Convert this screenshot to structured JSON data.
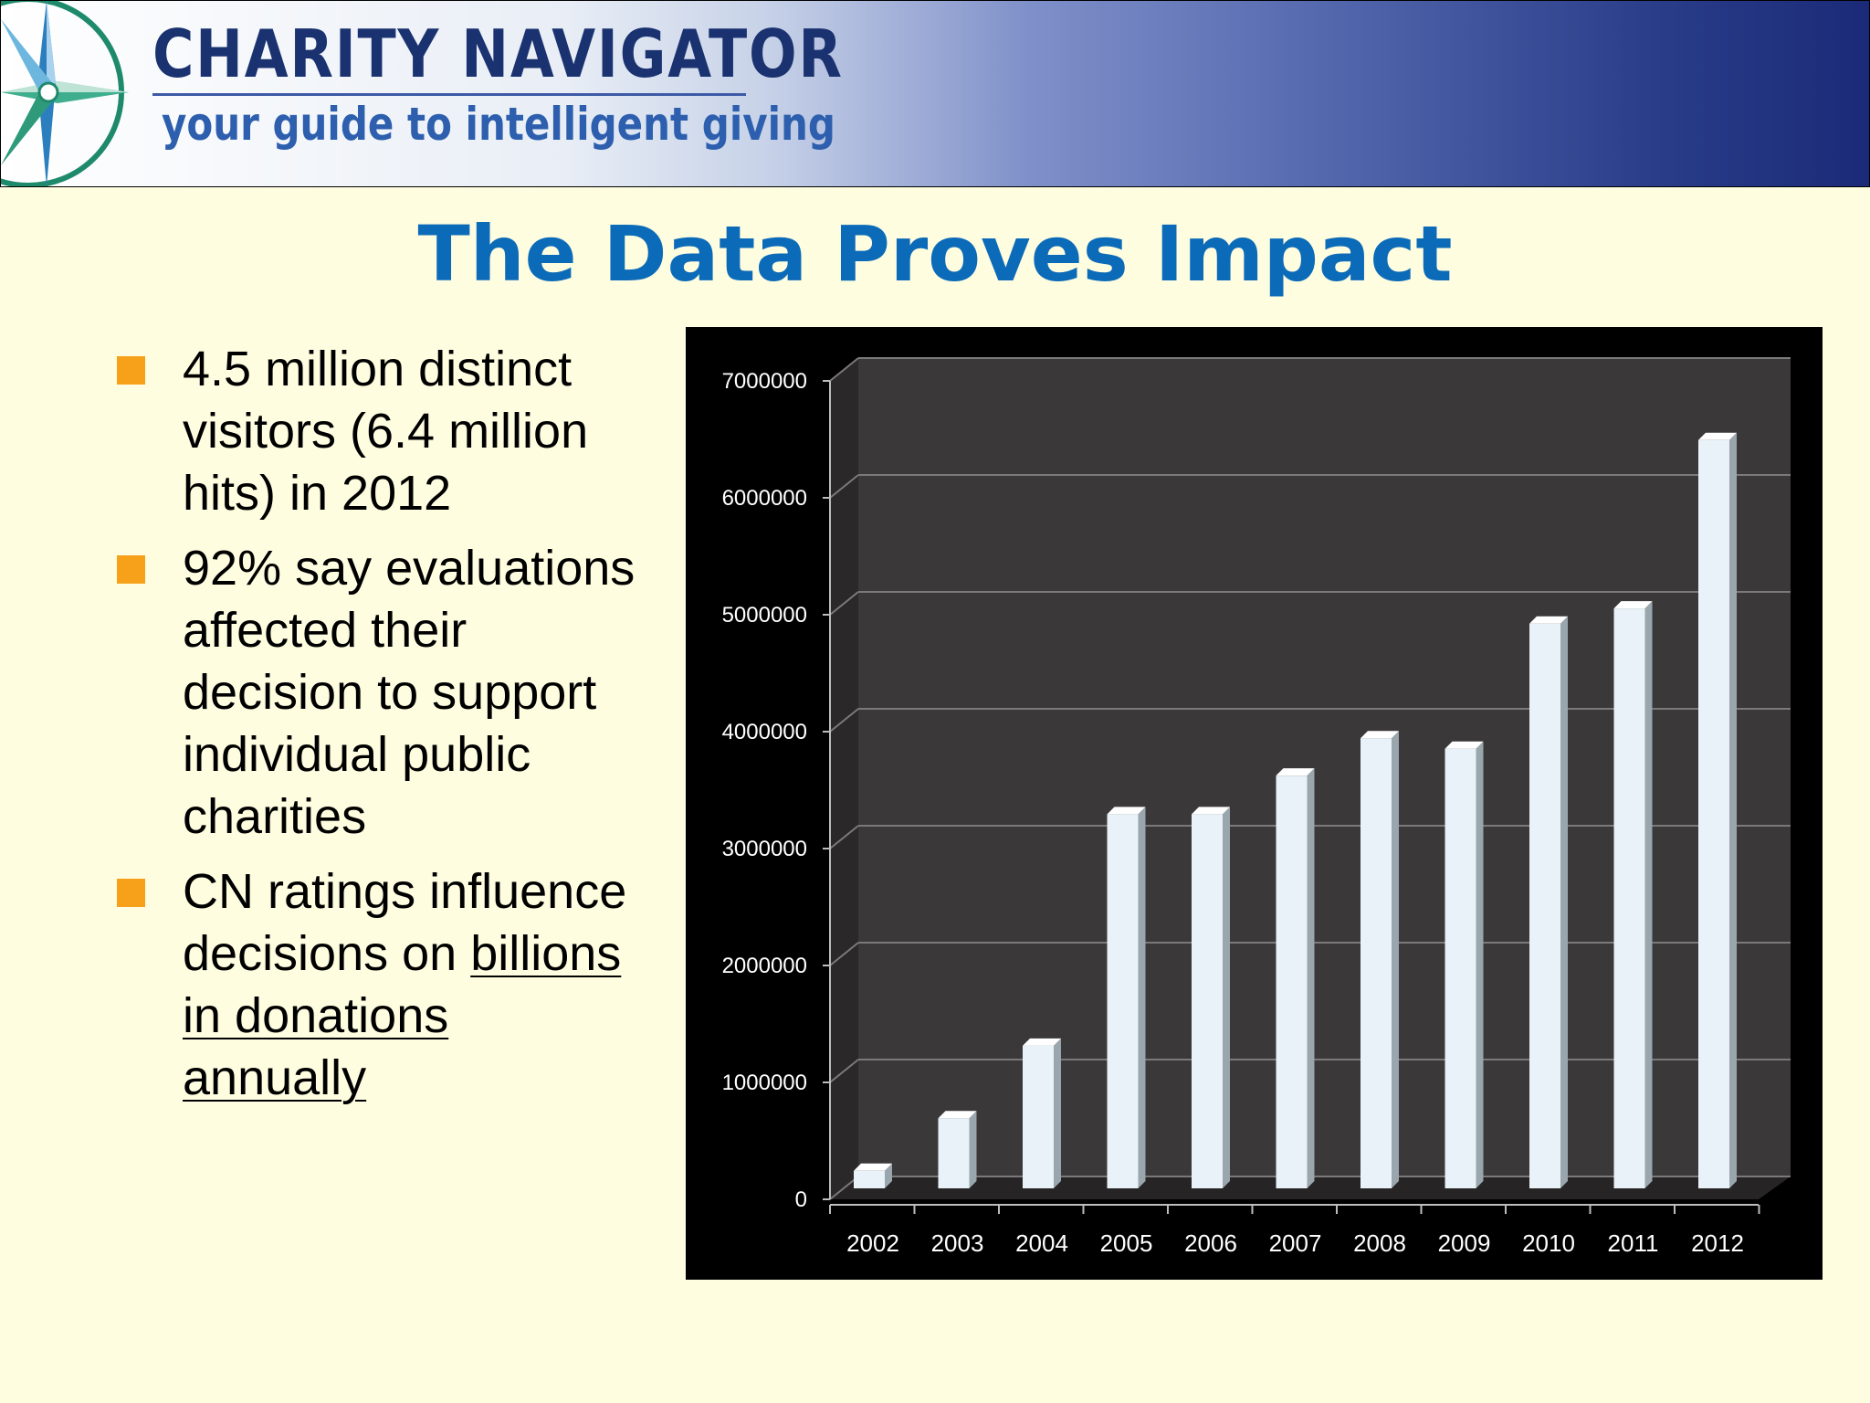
{
  "header": {
    "brand": "CHARITY NAVIGATOR",
    "tagline": "your guide to intelligent giving"
  },
  "slide": {
    "title": "The Data Proves Impact",
    "bullets": [
      {
        "text": "4.5 million distinct visitors (6.4 million hits) in 2012"
      },
      {
        "text": "92% say evaluations affected their decision to support individual public charities"
      },
      {
        "prefix": "CN ratings influence decisions on ",
        "underlined": "billions in donations annually"
      }
    ]
  },
  "colors": {
    "background": "#FFFDE0",
    "title": "#0c6bb8",
    "bullet": "#F7A11A",
    "chart_background": "#000000",
    "plot_wall": "#3a3839",
    "bar": "#e8f2f8"
  },
  "chart_data": {
    "type": "bar",
    "categories": [
      "2002",
      "2003",
      "2004",
      "2005",
      "2006",
      "2007",
      "2008",
      "2009",
      "2010",
      "2011",
      "2012"
    ],
    "values": [
      150000,
      600000,
      1220000,
      3200000,
      3200000,
      3530000,
      3850000,
      3760000,
      4830000,
      4960000,
      6400000
    ],
    "ylim": [
      0,
      7000000
    ],
    "yticks": [
      "0",
      "1000000",
      "2000000",
      "3000000",
      "4000000",
      "5000000",
      "6000000",
      "7000000"
    ],
    "title": "",
    "xlabel": "",
    "ylabel": "",
    "grid": true,
    "style": "3d"
  }
}
